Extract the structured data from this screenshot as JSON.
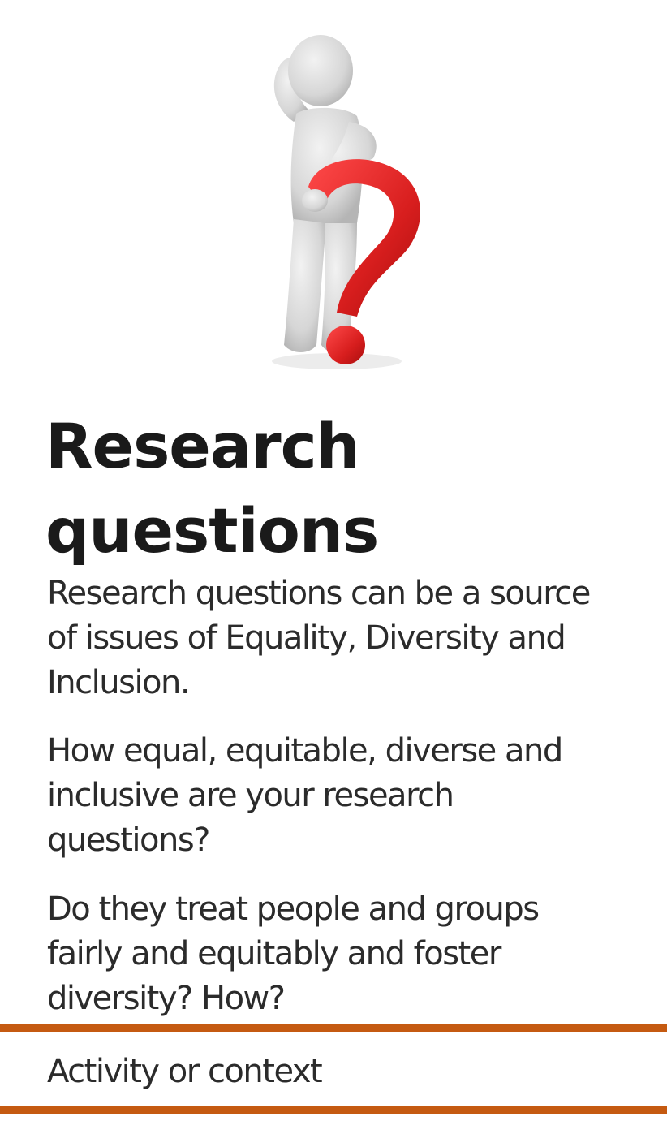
{
  "illustration": {
    "icon": "person-with-question-mark-icon",
    "figure_color": "#d9d9d9",
    "accent_color": "#e02020"
  },
  "title": "Research questions",
  "paragraphs": [
    "Research questions can be a source of issues of Equality, Diversity and Inclusion.",
    "How equal, equitable, diverse and inclusive are your research questions?",
    "Do they treat people and groups fairly and equitably and foster diversity? How?"
  ],
  "footer": {
    "label": "Activity or context",
    "rule_color": "#c55a11"
  }
}
